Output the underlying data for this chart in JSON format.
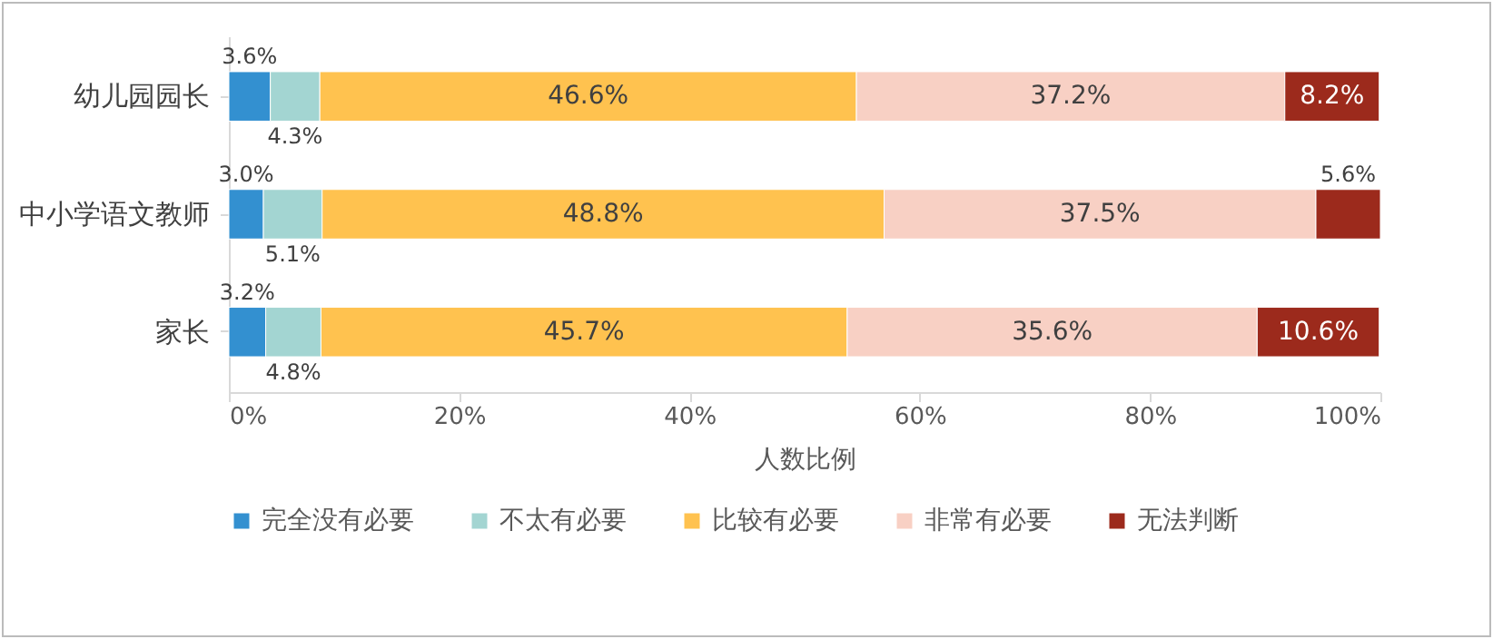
{
  "chart_data": {
    "type": "bar",
    "orientation": "horizontal",
    "stacked": true,
    "xlabel": "人数比例",
    "categories": [
      "幼儿园园长",
      "中小学语文教师",
      "家长"
    ],
    "xlim": [
      0,
      100
    ],
    "xticks": [
      {
        "value": 0,
        "label": "0%"
      },
      {
        "value": 20,
        "label": "20%"
      },
      {
        "value": 40,
        "label": "40%"
      },
      {
        "value": 60,
        "label": "60%"
      },
      {
        "value": 80,
        "label": "80%"
      },
      {
        "value": 100,
        "label": "100%"
      }
    ],
    "series": [
      {
        "name": "完全没有必要",
        "color": "#3390d0",
        "values": [
          3.6,
          3.0,
          3.2
        ],
        "value_labels": [
          "3.6%",
          "3.0%",
          "3.2%"
        ]
      },
      {
        "name": "不太有必要",
        "color": "#a3d5d2",
        "values": [
          4.3,
          5.1,
          4.8
        ],
        "value_labels": [
          "4.3%",
          "5.1%",
          "4.8%"
        ]
      },
      {
        "name": "比较有必要",
        "color": "#ffc24f",
        "values": [
          46.6,
          48.8,
          45.7
        ],
        "value_labels": [
          "46.6%",
          "48.8%",
          "45.7%"
        ]
      },
      {
        "name": "非常有必要",
        "color": "#f8d0c4",
        "values": [
          37.2,
          37.5,
          35.6
        ],
        "value_labels": [
          "37.2%",
          "37.5%",
          "35.6%"
        ]
      },
      {
        "name": "无法判断",
        "color": "#9c2a1c",
        "values": [
          8.2,
          5.6,
          10.6
        ],
        "value_labels": [
          "8.2%",
          "5.6%",
          "10.6%"
        ]
      }
    ],
    "grid": false,
    "legend": "bottom"
  }
}
